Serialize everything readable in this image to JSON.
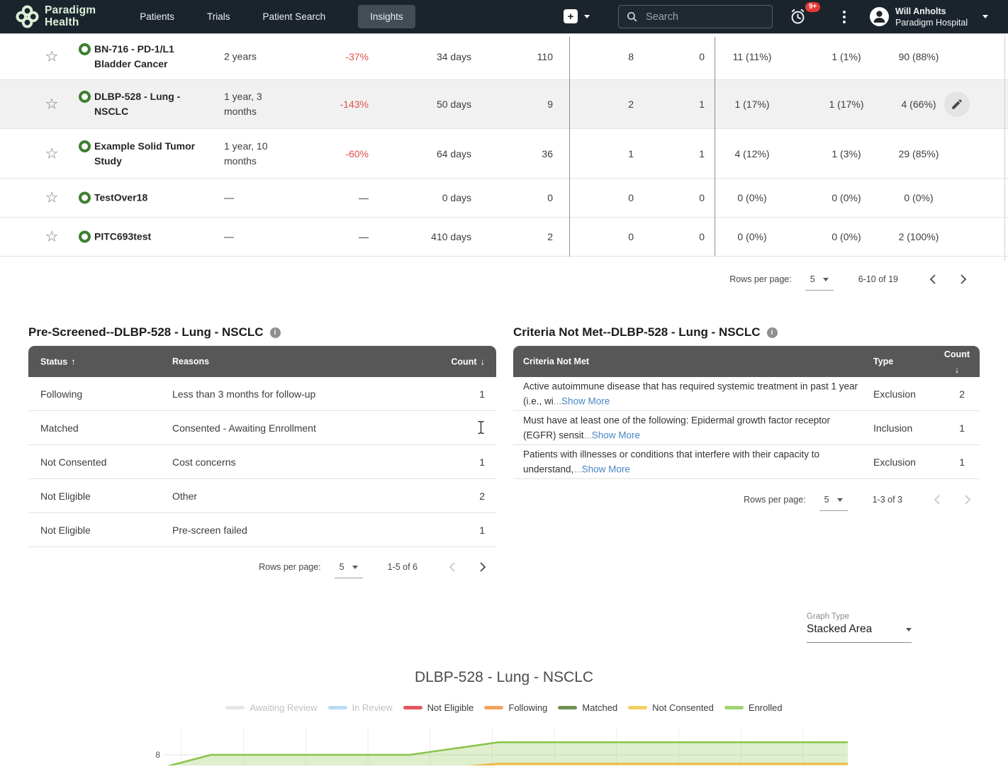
{
  "nav": {
    "brand": {
      "line1": "Paradigm",
      "line2": "Health"
    },
    "items": [
      {
        "label": "Patients",
        "active": false
      },
      {
        "label": "Trials",
        "active": false
      },
      {
        "label": "Patient Search",
        "active": false
      },
      {
        "label": "Insights",
        "active": true
      }
    ],
    "search_placeholder": "Search",
    "notification_badge": "9+",
    "user": {
      "name": "Will Anholts",
      "org": "Paradigm Hospital"
    }
  },
  "trials_table": {
    "rows": [
      {
        "name": "BN-716 - PD-1/L1 Bladder Cancer",
        "duration": "2 years",
        "pct": "-37%",
        "days": "34 days",
        "c1": "110",
        "c2": "8",
        "c3": "0",
        "p1": "11 (11%)",
        "p2": "1 (1%)",
        "p3": "90 (88%)",
        "highlighted": false,
        "editable": false
      },
      {
        "name": "DLBP-528 - Lung - NSCLC",
        "duration": "1 year, 3 months",
        "pct": "-143%",
        "days": "50 days",
        "c1": "9",
        "c2": "2",
        "c3": "1",
        "p1": "1 (17%)",
        "p2": "1 (17%)",
        "p3": "4 (66%)",
        "highlighted": true,
        "editable": true
      },
      {
        "name": "Example Solid Tumor Study",
        "duration": "1 year, 10 months",
        "pct": "-60%",
        "days": "64 days",
        "c1": "36",
        "c2": "1",
        "c3": "1",
        "p1": "4 (12%)",
        "p2": "1 (3%)",
        "p3": "29 (85%)",
        "highlighted": false,
        "editable": false
      },
      {
        "name": "TestOver18",
        "duration": "—",
        "pct": "—",
        "days": "0 days",
        "c1": "0",
        "c2": "0",
        "c3": "0",
        "p1": "0 (0%)",
        "p2": "0 (0%)",
        "p3": "0 (0%)",
        "highlighted": false,
        "editable": false
      },
      {
        "name": "PITC693test",
        "duration": "—",
        "pct": "—",
        "days": "410 days",
        "c1": "2",
        "c2": "0",
        "c3": "0",
        "p1": "0 (0%)",
        "p2": "0 (0%)",
        "p3": "2 (100%)",
        "highlighted": false,
        "editable": false
      }
    ],
    "pagination": {
      "label": "Rows per page:",
      "value": "5",
      "range": "6-10 of 19"
    }
  },
  "prescreened": {
    "title": "Pre-Screened--DLBP-528 - Lung - NSCLC",
    "columns": {
      "status": "Status",
      "reasons": "Reasons",
      "count": "Count"
    },
    "rows": [
      {
        "status": "Following",
        "reason": "Less than 3 months for follow-up",
        "count": "1"
      },
      {
        "status": "Matched",
        "reason": "Consented - Awaiting Enrollment",
        "count": ""
      },
      {
        "status": "Not Consented",
        "reason": "Cost concerns",
        "count": "1"
      },
      {
        "status": "Not Eligible",
        "reason": "Other",
        "count": "2"
      },
      {
        "status": "Not Eligible",
        "reason": "Pre-screen failed",
        "count": "1"
      }
    ],
    "pagination": {
      "label": "Rows per page:",
      "value": "5",
      "range": "1-5 of 6"
    }
  },
  "criteria": {
    "title": "Criteria Not Met--DLBP-528 - Lung - NSCLC",
    "columns": {
      "criteria": "Criteria Not Met",
      "type": "Type",
      "count": "Count"
    },
    "rows": [
      {
        "text": "Active autoimmune disease that has required systemic treatment in past 1 year (i.e., wi",
        "ellipsis": "...",
        "link": "Show More",
        "type": "Exclusion",
        "count": "2"
      },
      {
        "text": "Must have at least one of the following: Epidermal growth factor receptor (EGFR) sensit",
        "ellipsis": "...",
        "link": "Show More",
        "type": "Inclusion",
        "count": "1"
      },
      {
        "text": "Patients with illnesses or conditions that interfere with their capacity to understand,",
        "ellipsis": "...",
        "link": "Show More",
        "type": "Exclusion",
        "count": "1"
      }
    ],
    "pagination": {
      "label": "Rows per page:",
      "value": "5",
      "range": "1-3 of 3"
    }
  },
  "graph_controls": {
    "label": "Graph Type",
    "value": "Stacked Area"
  },
  "chart_data": {
    "type": "area",
    "stacked": true,
    "title": "DLBP-528 - Lung - NSCLC",
    "legend": [
      {
        "label": "Awaiting Review",
        "color": "#e6e6e6",
        "muted": true
      },
      {
        "label": "In Review",
        "color": "#b7ddf4",
        "muted": true
      },
      {
        "label": "Not Eligible",
        "color": "#e4555e",
        "muted": false
      },
      {
        "label": "Following",
        "color": "#f0a35c",
        "muted": false
      },
      {
        "label": "Matched",
        "color": "#6e9150",
        "muted": false
      },
      {
        "label": "Not Consented",
        "color": "#f3cf5e",
        "muted": false
      },
      {
        "label": "Enrolled",
        "color": "#a0d472",
        "muted": false
      }
    ],
    "visible_ytick": 8,
    "series_visible": [
      {
        "name": "Enrolled",
        "stroke": "#8bc34a",
        "fill": "rgba(139,195,74,0.28)",
        "points": [
          [
            0.0,
            6.3
          ],
          [
            0.07,
            8
          ],
          [
            0.36,
            8
          ],
          [
            0.49,
            9.7
          ],
          [
            1.0,
            9.7
          ]
        ]
      },
      {
        "name": "Not Consented",
        "stroke": "#f0b73e",
        "fill": "rgba(240,183,62,0.30)",
        "points": [
          [
            0.39,
            6.0
          ],
          [
            0.49,
            6.8
          ],
          [
            1.0,
            6.8
          ]
        ]
      }
    ]
  }
}
